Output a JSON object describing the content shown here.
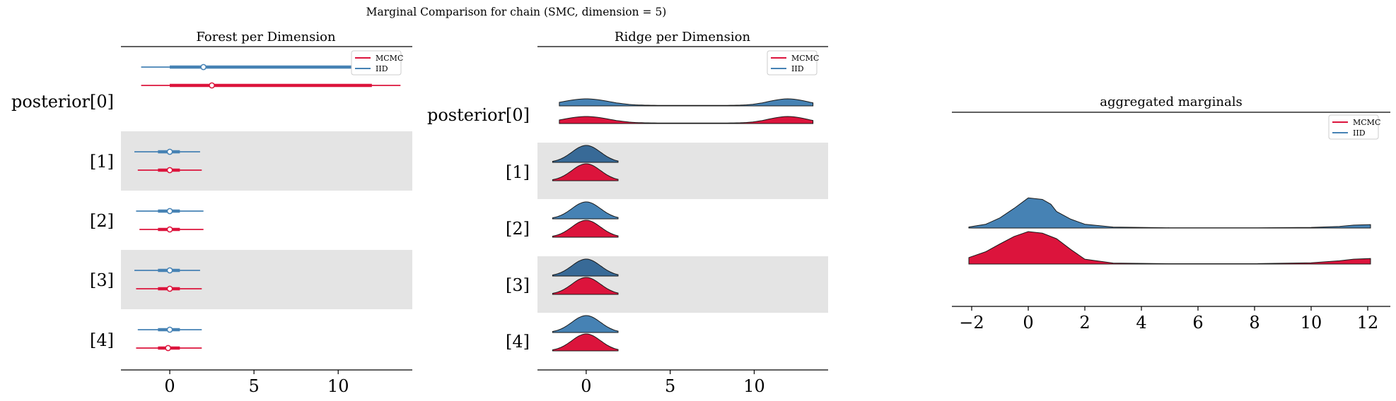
{
  "figure": {
    "title": "Marginal Comparison for chain (SMC, dimension = 5)"
  },
  "colors": {
    "mcmc": "#DC143C",
    "iid": "#4682B4",
    "iid_dark": "#386A97",
    "band": "#E4E4E4",
    "axis": "#000000"
  },
  "chart_data": [
    {
      "type": "forest",
      "title": "Forest per Dimension",
      "xlabel": "",
      "ylabel": "",
      "xlim": [
        -2.9,
        14.4
      ],
      "xticks": [
        0,
        5,
        10
      ],
      "y_labels": [
        "posterior[0]",
        "[1]",
        "[2]",
        "[3]",
        "[4]"
      ],
      "shaded_rows": [
        1,
        3
      ],
      "legend": {
        "placement": "top-right",
        "entries": [
          "MCMC",
          "IID"
        ]
      },
      "series": [
        {
          "name": "IID",
          "rows": [
            {
              "median": 2.0,
              "hdi_50": [
                0.0,
                12.0
              ],
              "hdi_94": [
                -1.7,
                13.5
              ]
            },
            {
              "median": 0.0,
              "hdi_50": [
                -0.7,
                0.6
              ],
              "hdi_94": [
                -2.1,
                1.8
              ]
            },
            {
              "median": 0.0,
              "hdi_50": [
                -0.7,
                0.6
              ],
              "hdi_94": [
                -2.0,
                2.0
              ]
            },
            {
              "median": 0.0,
              "hdi_50": [
                -0.7,
                0.6
              ],
              "hdi_94": [
                -2.1,
                1.8
              ]
            },
            {
              "median": 0.0,
              "hdi_50": [
                -0.7,
                0.6
              ],
              "hdi_94": [
                -1.9,
                1.9
              ]
            }
          ]
        },
        {
          "name": "MCMC",
          "rows": [
            {
              "median": 2.5,
              "hdi_50": [
                0.0,
                12.0
              ],
              "hdi_94": [
                -1.7,
                13.7
              ]
            },
            {
              "median": 0.0,
              "hdi_50": [
                -0.7,
                0.6
              ],
              "hdi_94": [
                -1.9,
                1.9
              ]
            },
            {
              "median": 0.0,
              "hdi_50": [
                -0.7,
                0.6
              ],
              "hdi_94": [
                -1.8,
                2.0
              ]
            },
            {
              "median": 0.0,
              "hdi_50": [
                -0.7,
                0.6
              ],
              "hdi_94": [
                -2.0,
                1.9
              ]
            },
            {
              "median": -0.1,
              "hdi_50": [
                -0.7,
                0.6
              ],
              "hdi_94": [
                -2.0,
                1.9
              ]
            }
          ]
        }
      ]
    },
    {
      "type": "ridge",
      "title": "Ridge per Dimension",
      "xlabel": "",
      "ylabel": "",
      "xlim": [
        -2.9,
        14.4
      ],
      "xticks": [
        0,
        5,
        10
      ],
      "y_labels": [
        "posterior[0]",
        "[1]",
        "[2]",
        "[3]",
        "[4]"
      ],
      "shaded_rows": [
        1,
        3
      ],
      "legend": {
        "placement": "top-right",
        "entries": [
          "MCMC",
          "IID"
        ]
      },
      "density_support": {
        "posterior[0]": [
          -1.6,
          13.5
        ],
        "other": [
          -2.0,
          1.9
        ]
      },
      "density_shape": {
        "bimodal_modes": [
          0.0,
          12.0
        ],
        "unimodal_mode": 0.0
      }
    },
    {
      "type": "area",
      "title": "aggregated marginals",
      "xlabel": "",
      "ylabel": "",
      "xlim": [
        -2.7,
        12.8
      ],
      "xticks": [
        -2,
        0,
        2,
        4,
        6,
        8,
        10,
        12
      ],
      "legend": {
        "placement": "top-right",
        "entries": [
          "MCMC",
          "IID"
        ]
      },
      "series": [
        {
          "name": "IID",
          "x": [
            -2.1,
            -1.5,
            -1.0,
            -0.5,
            0.0,
            0.5,
            0.8,
            1.0,
            1.5,
            2.0,
            3.0,
            5.0,
            8.0,
            10.0,
            11.0,
            11.5,
            12.1
          ],
          "density": [
            0.03,
            0.12,
            0.32,
            0.62,
            0.95,
            0.9,
            0.75,
            0.52,
            0.28,
            0.12,
            0.03,
            0.01,
            0.01,
            0.02,
            0.05,
            0.09,
            0.11
          ]
        },
        {
          "name": "MCMC",
          "x": [
            -2.1,
            -1.5,
            -1.0,
            -0.5,
            0.0,
            0.5,
            1.0,
            1.5,
            2.0,
            3.0,
            5.0,
            8.0,
            10.0,
            11.0,
            11.5,
            12.1
          ],
          "density": [
            0.2,
            0.38,
            0.62,
            0.85,
            1.0,
            0.95,
            0.78,
            0.45,
            0.15,
            0.03,
            0.01,
            0.01,
            0.04,
            0.1,
            0.15,
            0.17
          ]
        }
      ]
    }
  ]
}
